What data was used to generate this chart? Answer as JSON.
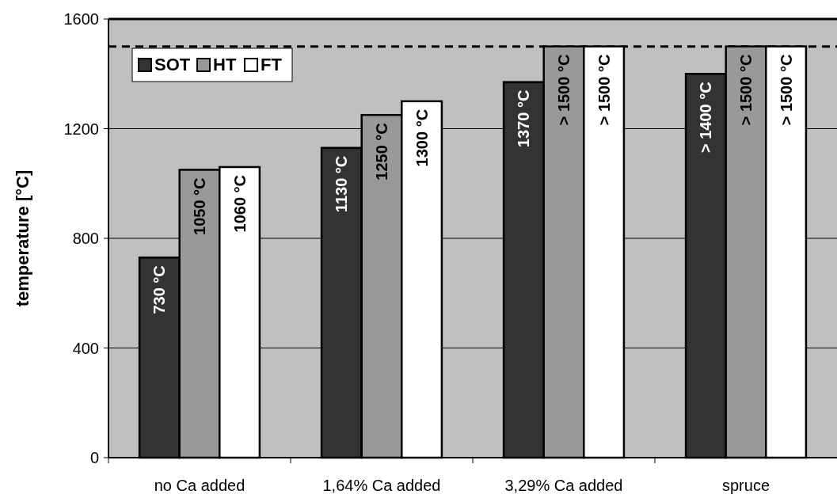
{
  "chart_data": {
    "type": "bar",
    "ylabel": "temperature [°C]",
    "categories": [
      "no Ca added",
      "1,64% Ca added",
      "3,29% Ca added",
      "spruce"
    ],
    "series": [
      {
        "name": "SOT",
        "color": "#333333",
        "values": [
          730,
          1130,
          1370,
          1400
        ],
        "value_labels": [
          "730 °C",
          "1130 °C",
          "1370 °C",
          "> 1400 °C"
        ]
      },
      {
        "name": "HT",
        "color": "#999999",
        "values": [
          1050,
          1250,
          1500,
          1500
        ],
        "value_labels": [
          "1050 °C",
          "1250 °C",
          "> 1500 °C",
          "> 1500 °C"
        ]
      },
      {
        "name": "FT",
        "color": "#ffffff",
        "values": [
          1060,
          1300,
          1500,
          1500
        ],
        "value_labels": [
          "1060 °C",
          "1300 °C",
          "> 1500 °C",
          "> 1500 °C"
        ]
      }
    ],
    "ylim": [
      0,
      1600
    ],
    "yticks": [
      0,
      400,
      800,
      1200,
      1600
    ],
    "grid": "y",
    "legend": "top left",
    "ref_lines": [
      {
        "axis": "y",
        "value": 1500,
        "line_style": "dashed",
        "color": "#000000"
      }
    ]
  }
}
